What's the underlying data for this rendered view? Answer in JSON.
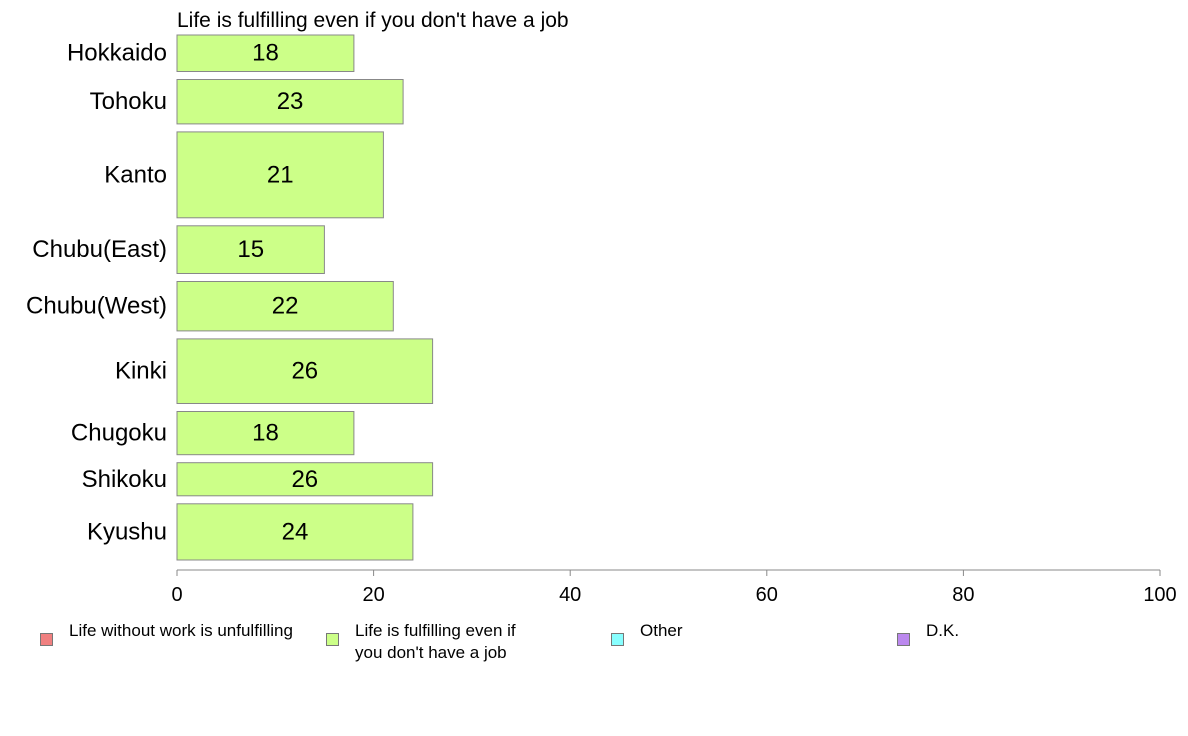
{
  "chart_data": {
    "type": "bar",
    "orientation": "horizontal",
    "title": "Life is fulfilling even if you don't have a job",
    "categories": [
      "Hokkaido",
      "Tohoku",
      "Kanto",
      "Chubu(East)",
      "Chubu(West)",
      "Kinki",
      "Chugoku",
      "Shikoku",
      "Kyushu"
    ],
    "values": [
      18,
      23,
      21,
      15,
      22,
      26,
      18,
      26,
      24
    ],
    "bar_heights_relative": [
      0.65,
      0.79,
      1.53,
      0.85,
      0.88,
      1.15,
      0.77,
      0.59,
      1.0
    ],
    "xlim": [
      0,
      100
    ],
    "xticks": [
      0,
      20,
      40,
      60,
      80,
      100
    ],
    "grid": false,
    "bar_color": "#ccff88",
    "bar_border_color": "#888888",
    "legend_placement": "bottom",
    "legend": [
      {
        "label": "Life without work is unfulfilling",
        "color": "#f08080"
      },
      {
        "label": "Life is fulfilling even if\nyou don't have a job",
        "color": "#ccff88"
      },
      {
        "label": "Other",
        "color": "#88ffff"
      },
      {
        "label": "D.K.",
        "color": "#bb88ee"
      }
    ]
  }
}
